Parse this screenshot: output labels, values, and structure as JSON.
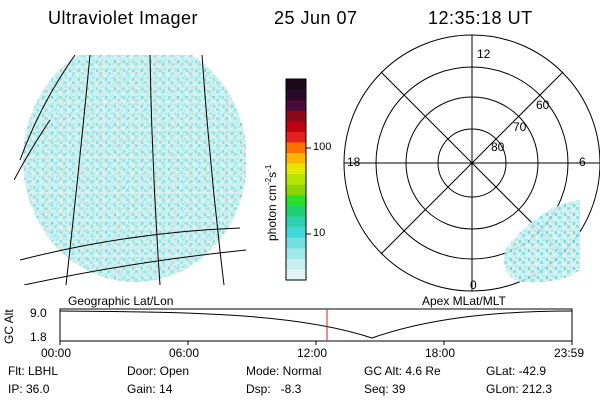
{
  "header": {
    "title": "Ultraviolet Imager",
    "date": "25 Jun 07",
    "time": "12:35:18 UT"
  },
  "colorbar": {
    "label_units": "photon cm",
    "label_sup1": "-2",
    "label_mid": "s",
    "label_sup2": "-1",
    "tick_top": "100",
    "tick_bottom": "10",
    "colors_top_to_bottom": [
      "#1a0a1a",
      "#2a0a2a",
      "#4a0a3a",
      "#8a0a1a",
      "#c00010",
      "#e22020",
      "#ff7000",
      "#ffb400",
      "#e6e600",
      "#b6e600",
      "#8ad600",
      "#2ae02a",
      "#20d070",
      "#30d0b0",
      "#40d8d8",
      "#70e0e0",
      "#a0e8e8",
      "#c8f0f0",
      "#e0f4f4"
    ]
  },
  "panels": {
    "left_caption": "Geographic Lat/Lon",
    "right_caption": "Apex MLat/MLT"
  },
  "polar": {
    "mlt_top": "12",
    "mlt_left": "18",
    "mlt_right": "6",
    "mlt_bottom": "0",
    "lat_60": "60",
    "lat_70": "70",
    "lat_80": "80"
  },
  "orbit": {
    "axis_label": "GC Alt",
    "y_top": "9.0",
    "y_bottom": "1.8",
    "x_ticks": [
      "00:00",
      "06:00",
      "12:00",
      "18:00",
      "23:59"
    ],
    "marker_time": "12:35:18",
    "marker_color": "#cc2222"
  },
  "info": {
    "flt": "Flt: LBHL",
    "ip": "IP: 36.0",
    "door": "Door: Open",
    "gain": "Gain: 14",
    "mode": "Mode: Normal",
    "dsp": "Dsp:   -8.3",
    "gcalt": "GC Alt: 4.6 Re",
    "seq": "Seq: 39",
    "glat": "GLat: -42.9",
    "glon": "GLon: 212.3"
  }
}
